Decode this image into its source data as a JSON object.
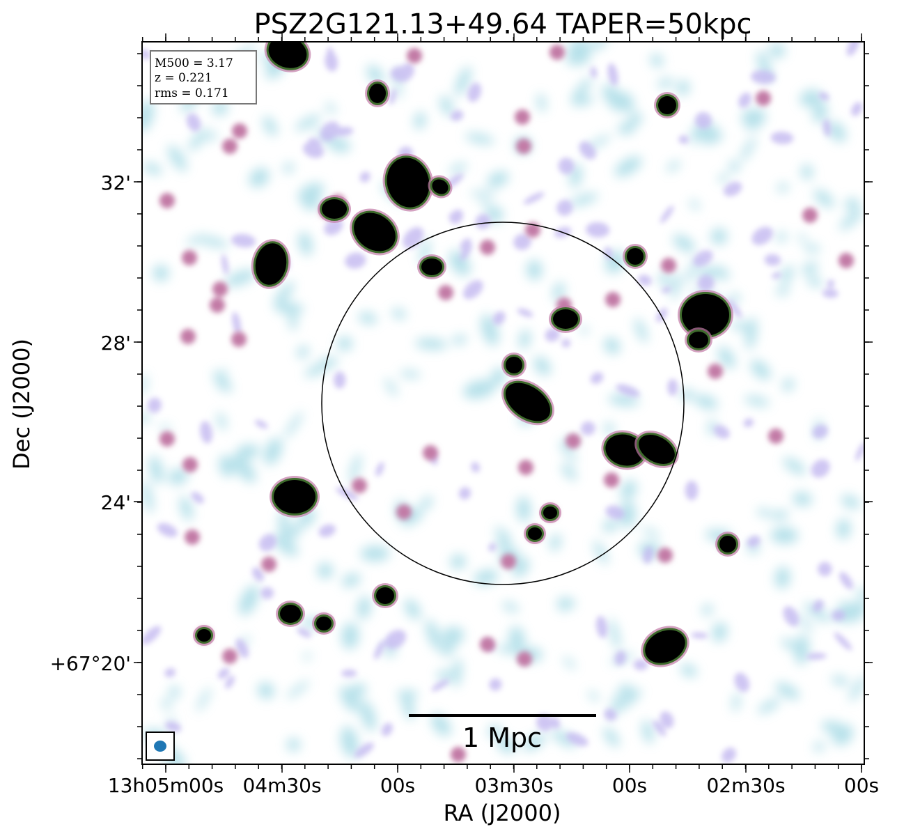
{
  "title": "PSZ2G121.13+49.64 TAPER=50kpc",
  "info_box": {
    "line1": "M500 = 3.17",
    "line2": "z = 0.221",
    "line3": "rms = 0.171"
  },
  "scale_bar_label": "1 Mpc",
  "x_axis": {
    "label": "RA (J2000)",
    "ticks": [
      "13h05m00s",
      "04m30s",
      "00s",
      "03m30s",
      "00s",
      "02m30s",
      "00s"
    ]
  },
  "y_axis": {
    "label": "Dec (J2000)",
    "ticks": [
      "32'",
      "28'",
      "24'",
      "+67°20'"
    ]
  },
  "colors": {
    "background": "#ffffff",
    "faint_emission": "#a9dbe6",
    "low_emission": "#c3b8f0",
    "mid_emission": "#c27aa6",
    "high_emission": "#3e6b2c",
    "peak_emission": "#000000",
    "beam": "#1f77b4"
  }
}
